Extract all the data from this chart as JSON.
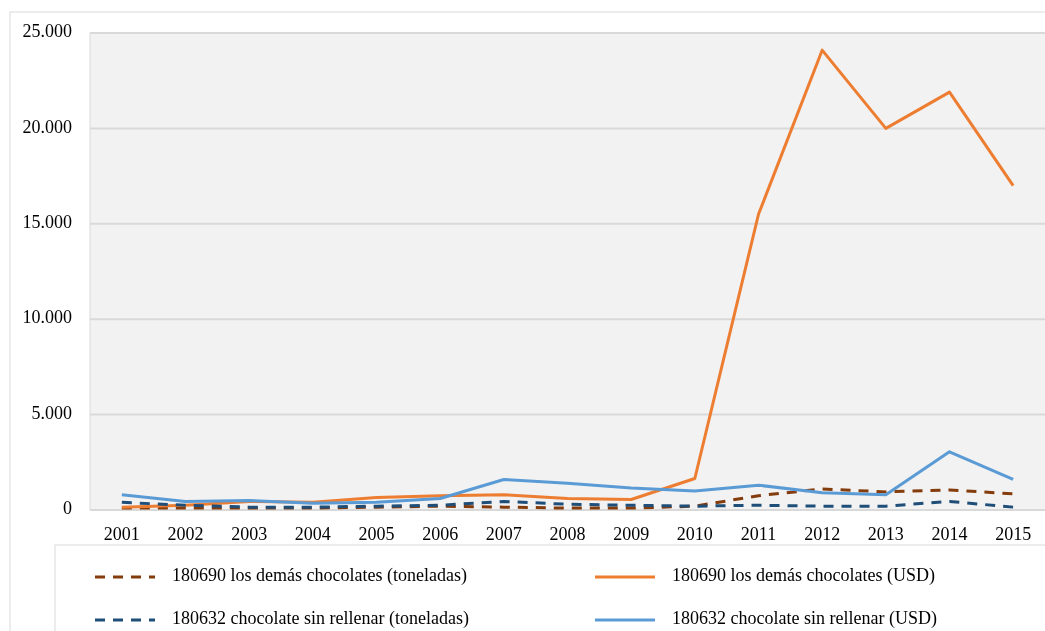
{
  "chart_data": {
    "type": "line",
    "categories": [
      "2001",
      "2002",
      "2003",
      "2004",
      "2005",
      "2006",
      "2007",
      "2008",
      "2009",
      "2010",
      "2011",
      "2012",
      "2013",
      "2014",
      "2015"
    ],
    "ylim": [
      0,
      25000
    ],
    "yticks": [
      {
        "value": 0,
        "label": "0"
      },
      {
        "value": 5000,
        "label": "5.000"
      },
      {
        "value": 10000,
        "label": "10.000"
      },
      {
        "value": 15000,
        "label": "15.000"
      },
      {
        "value": 20000,
        "label": "20.000"
      },
      {
        "value": 25000,
        "label": "25.000"
      }
    ],
    "grid": "y",
    "legend": "bottom",
    "series": [
      {
        "name": "180690 los demás chocolates (toneladas)",
        "color": "#843c0c",
        "line_style": "dashed",
        "values": [
          100,
          100,
          100,
          100,
          150,
          200,
          150,
          100,
          100,
          200,
          750,
          1100,
          950,
          1050,
          850
        ]
      },
      {
        "name": "180690 los demás chocolates (USD)",
        "color": "#ed7d31",
        "line_style": "solid",
        "values": [
          150,
          250,
          450,
          400,
          650,
          750,
          800,
          600,
          550,
          1650,
          15500,
          24100,
          20000,
          21900,
          17000
        ]
      },
      {
        "name": "180632 chocolate sin rellenar (toneladas)",
        "color": "#1f4e79",
        "line_style": "dashed",
        "values": [
          400,
          250,
          150,
          150,
          200,
          250,
          450,
          300,
          250,
          200,
          250,
          200,
          200,
          450,
          150
        ]
      },
      {
        "name": "180632 chocolate sin rellenar (USD)",
        "color": "#5b9bd5",
        "line_style": "solid",
        "values": [
          800,
          450,
          500,
          350,
          400,
          600,
          1600,
          1400,
          1150,
          1000,
          1300,
          900,
          800,
          3050,
          1600
        ]
      }
    ]
  }
}
